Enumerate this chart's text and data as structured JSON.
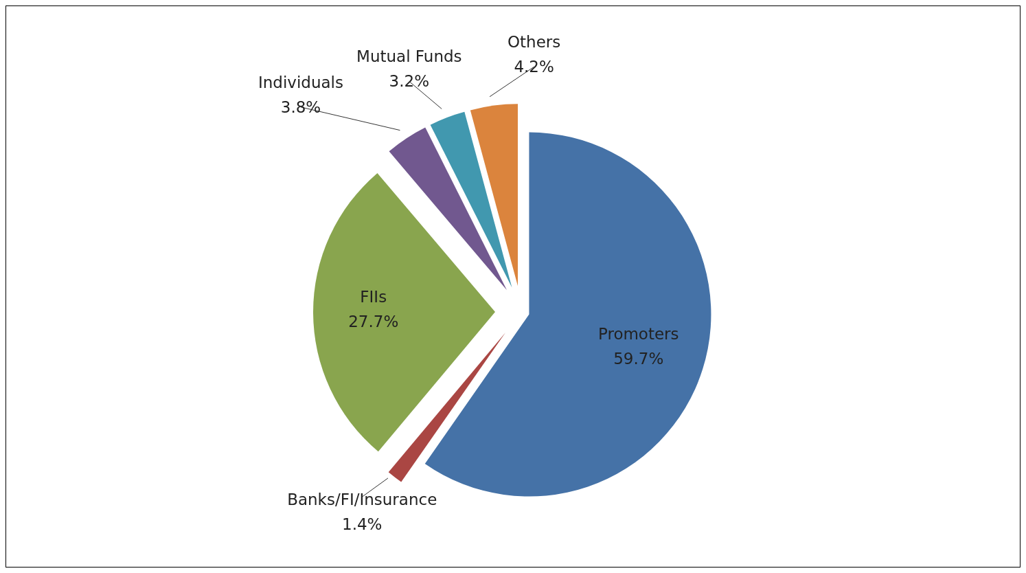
{
  "chart_data": {
    "type": "pie",
    "categories": [
      "Promoters",
      "Banks/FI/Insurance",
      "FIIs",
      "Individuals",
      "Mutual Funds",
      "Others"
    ],
    "values": [
      59.7,
      1.4,
      27.7,
      3.8,
      3.2,
      4.2
    ],
    "value_labels": [
      "59.7%",
      "1.4%",
      "27.7%",
      "3.8%",
      "3.2%",
      "4.2%"
    ],
    "colors": [
      "#4572a7",
      "#aa4643",
      "#89a54e",
      "#71588f",
      "#4198af",
      "#db843d"
    ]
  }
}
